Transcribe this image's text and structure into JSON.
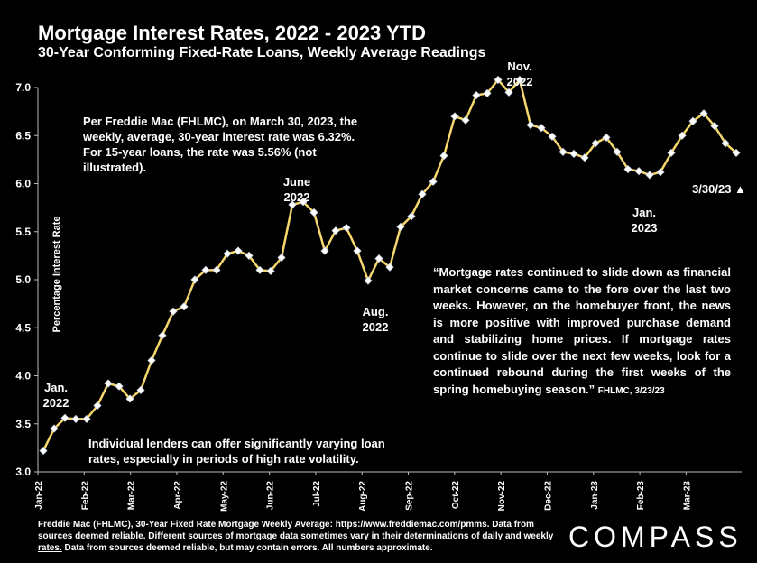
{
  "header": {
    "title": "Mortgage Interest Rates, 2022 - 2023 YTD",
    "subtitle": "30-Year Conforming Fixed-Rate Loans, Weekly Average Readings"
  },
  "annotations": {
    "freddie_note": "Per Freddie Mac (FHLMC), on March 30, 2023, the weekly, average, 30-year interest rate was 6.32%. For 15-year loans, the rate was 5.56% (not illustrated).",
    "lenders_note": "Individual lenders can offer significantly varying loan rates, especially in periods of high rate volatility.",
    "quote": "“Mortgage rates continued to slide down as financial market concerns came to the fore over the last two weeks. However, on the homebuyer front, the news is more positive with improved purchase demand and stabilizing home prices. If mortgage rates continue to slide over the next few weeks, look for a continued rebound during the first weeks of the spring homebuying season.”",
    "quote_source": "FHLMC, 3/23/23",
    "jan22": "Jan. 2022",
    "jun22": "June 2022",
    "aug22": "Aug. 2022",
    "nov22": "Nov. 2022",
    "jan23": "Jan. 2023",
    "latest": "3/30/23 ▲"
  },
  "footer": {
    "text1": "Freddie Mac (FHLMC), 30-Year Fixed Rate Mortgage Weekly Average: https://www.freddiemac.com/pmms. Data from sources deemed reliable.",
    "text_underlined": "Different sources of mortgage data sometimes vary in their determinations of daily and weekly rates.",
    "text2": "Data from sources deemed reliable, but may contain errors. All numbers approximate.",
    "brand": "COMPASS"
  },
  "colors": {
    "line": "#f5d76e",
    "marker": "#ffffff",
    "background": "#000000"
  },
  "chart_data": {
    "type": "line",
    "title": "Mortgage Interest Rates, 2022 - 2023 YTD",
    "ylabel": "Percentage Interest Rate",
    "xlabel": "",
    "ylim": [
      3.0,
      7.0
    ],
    "yticks": [
      "3.0",
      "3.5",
      "4.0",
      "4.5",
      "5.0",
      "5.5",
      "6.0",
      "6.5",
      "7.0"
    ],
    "xticks": [
      "Jan-22",
      "Feb-22",
      "Mar-22",
      "Apr-22",
      "May-22",
      "Jun-22",
      "Jul-22",
      "Aug-22",
      "Sep-22",
      "Oct-22",
      "Nov-22",
      "Dec-22",
      "Jan-23",
      "Feb-23",
      "Mar-23"
    ],
    "series": [
      {
        "name": "30-Year Fixed Rate",
        "values": [
          3.22,
          3.45,
          3.56,
          3.55,
          3.55,
          3.69,
          3.92,
          3.89,
          3.76,
          3.85,
          4.16,
          4.42,
          4.67,
          4.72,
          5.0,
          5.1,
          5.1,
          5.27,
          5.3,
          5.25,
          5.1,
          5.09,
          5.23,
          5.78,
          5.81,
          5.7,
          5.3,
          5.51,
          5.54,
          5.3,
          4.99,
          5.22,
          5.13,
          5.55,
          5.66,
          5.89,
          6.02,
          6.29,
          6.7,
          6.66,
          6.92,
          6.94,
          7.08,
          6.95,
          7.08,
          6.61,
          6.58,
          6.49,
          6.33,
          6.31,
          6.27,
          6.42,
          6.48,
          6.33,
          6.15,
          6.13,
          6.09,
          6.12,
          6.32,
          6.5,
          6.65,
          6.73,
          6.6,
          6.42,
          6.32
        ]
      }
    ]
  }
}
